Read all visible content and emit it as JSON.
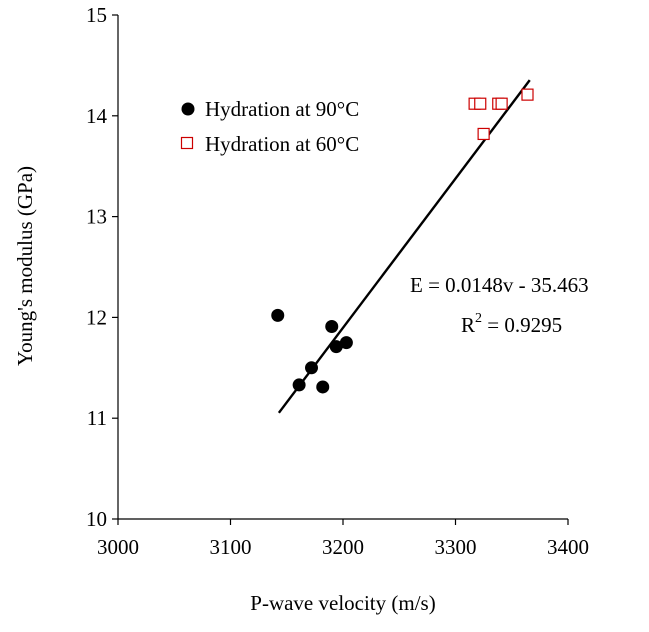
{
  "chart_data": {
    "type": "scatter",
    "title": "",
    "xlabel": "P-wave velocity (m/s)",
    "ylabel": "Young's modulus (GPa)",
    "xlim": [
      3000,
      3400
    ],
    "ylim": [
      10,
      15
    ],
    "xticks": [
      "3000",
      "3100",
      "3200",
      "3300",
      "3400"
    ],
    "yticks": [
      "10",
      "11",
      "12",
      "13",
      "14",
      "15"
    ],
    "grid": false,
    "legend_position": "top-left",
    "series": [
      {
        "name": "Hydration at 90°C",
        "marker": "filled-circle",
        "color": "#000000",
        "points": [
          {
            "x": 3142,
            "y": 12.02
          },
          {
            "x": 3161,
            "y": 11.33
          },
          {
            "x": 3172,
            "y": 11.5
          },
          {
            "x": 3182,
            "y": 11.31
          },
          {
            "x": 3190,
            "y": 11.91
          },
          {
            "x": 3194,
            "y": 11.71
          },
          {
            "x": 3203,
            "y": 11.75
          }
        ]
      },
      {
        "name": "Hydration at 60°C",
        "marker": "open-square",
        "color": "#cc0000",
        "points": [
          {
            "x": 3317,
            "y": 14.12
          },
          {
            "x": 3322,
            "y": 14.12
          },
          {
            "x": 3325,
            "y": 13.82
          },
          {
            "x": 3338,
            "y": 14.12
          },
          {
            "x": 3341,
            "y": 14.12
          },
          {
            "x": 3364,
            "y": 14.21
          }
        ]
      }
    ],
    "trendline": {
      "x_start": 3143,
      "x_end": 3366,
      "slope": 0.0148,
      "intercept": -35.463
    },
    "annotations": {
      "equation": "E = 0.0148v - 35.463",
      "r2_prefix": "R",
      "r2_sup": "2",
      "r2_suffix": " = 0.9295"
    }
  }
}
